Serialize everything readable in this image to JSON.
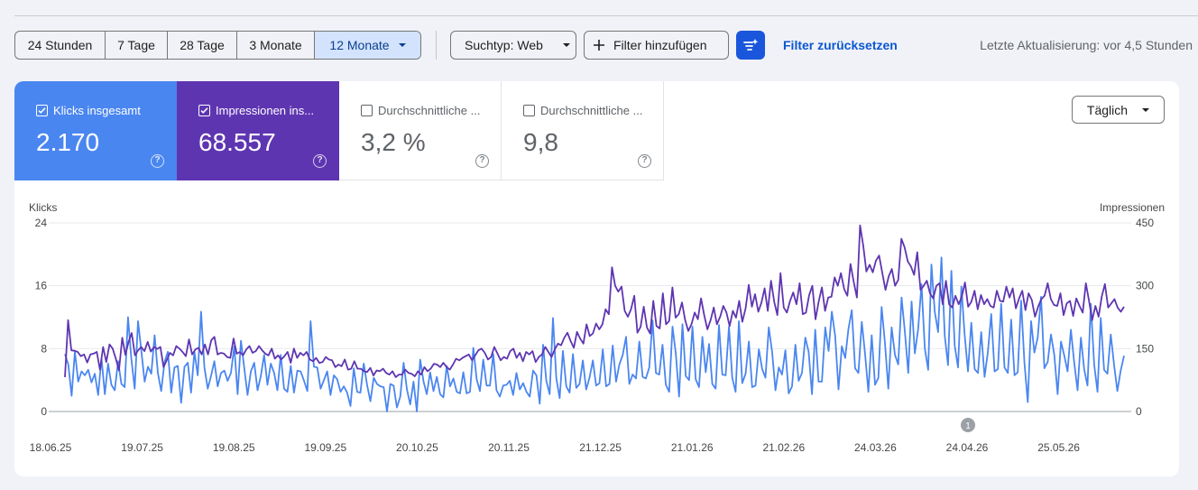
{
  "toolbar": {
    "ranges": [
      {
        "label": "24 Stunden",
        "active": false
      },
      {
        "label": "7 Tage",
        "active": false
      },
      {
        "label": "28 Tage",
        "active": false
      },
      {
        "label": "3 Monate",
        "active": false
      },
      {
        "label": "12 Monate",
        "active": true
      }
    ],
    "search_type": "Suchtyp: Web",
    "add_filter": "Filter hinzufügen",
    "reset_filter": "Filter zurücksetzen",
    "last_update": "Letzte Aktualisierung: vor 4,5 Stunden"
  },
  "metrics": [
    {
      "label": "Klicks insgesamt",
      "value": "2.170",
      "checked": true,
      "color": "#4a86f0"
    },
    {
      "label": "Impressionen ins...",
      "value": "68.557",
      "checked": true,
      "color": "#5e35b1"
    },
    {
      "label": "Durchschnittliche ...",
      "value": "3,2 %",
      "checked": false
    },
    {
      "label": "Durchschnittliche ...",
      "value": "9,8",
      "checked": false
    }
  ],
  "granularity": "Täglich",
  "chart_data": {
    "type": "line",
    "left_axis_label": "Klicks",
    "right_axis_label": "Impressionen",
    "left_ticks": [
      "24",
      "16",
      "8",
      "0"
    ],
    "right_ticks": [
      "450",
      "300",
      "150",
      "0"
    ],
    "left_ylim": [
      0,
      24
    ],
    "right_ylim": [
      0,
      450
    ],
    "x_ticks": [
      "18.06.25",
      "19.07.25",
      "19.08.25",
      "19.09.25",
      "20.10.25",
      "20.11.25",
      "21.12.25",
      "21.01.26",
      "21.02.26",
      "24.03.26",
      "24.04.26",
      "25.05.26"
    ],
    "annotation": "1",
    "series": [
      {
        "name": "Klicks",
        "axis": "left",
        "color": "#4a86f0",
        "values": [
          7.3,
          6,
          2,
          7.6,
          3.8,
          5.1,
          4.6,
          5.3,
          3.7,
          4.8,
          2.1,
          6.8,
          2.2,
          6.1,
          3.4,
          2.7,
          6.4,
          3.5,
          3.1,
          12,
          6.7,
          2.9,
          11.5,
          7.8,
          3.8,
          5.7,
          4.8,
          9.7,
          4.9,
          2.6,
          6.3,
          7.6,
          2.4,
          5.6,
          5.8,
          1.1,
          5.7,
          6.2,
          2.4,
          7.6,
          4.6,
          12.7,
          5.6,
          2.9,
          4.5,
          6.4,
          3.2,
          4.9,
          5.2,
          3.9,
          4.9,
          8.3,
          2.2,
          9,
          5.6,
          2.1,
          5.1,
          6.2,
          2.7,
          4.5,
          7.2,
          3.4,
          6.1,
          4.9,
          2.7,
          7.2,
          2.9,
          2.5,
          5.8,
          2.4,
          5.2,
          5.1,
          3.9,
          2.6,
          11.5,
          5.7,
          5.6,
          2.9,
          4,
          5.1,
          2.1,
          4.6,
          4.1,
          2.5,
          3.2,
          2.4,
          0.7,
          5.5,
          2.5,
          2.4,
          6.1,
          3.4,
          1.3,
          4.3,
          3.5,
          3.2,
          3.1,
          0,
          3.5,
          3.3,
          0.5,
          1.9,
          6.2,
          2.8,
          0.9,
          3.8,
          0,
          6.6,
          3.8,
          2.2,
          5,
          2.6,
          4.4,
          2.2,
          1.8,
          5.8,
          3.2,
          4.2,
          2.5,
          2.3,
          5,
          2.3,
          2.5,
          8.1,
          4.1,
          2.6,
          6.6,
          3.3,
          3.3,
          7.3,
          2.7,
          1.9,
          3.3,
          3.4,
          3.9,
          2.1,
          4.9,
          2.8,
          3.6,
          2.5,
          1.9,
          5.2,
          4.6,
          1,
          8.5,
          3.9,
          2.2,
          11.9,
          4.2,
          1.7,
          7.7,
          3.2,
          2.4,
          7.3,
          3,
          3.5,
          6.5,
          2.8,
          4.3,
          6.5,
          3.3,
          3.6,
          7.9,
          3.2,
          3.5,
          8.4,
          3.8,
          6,
          7.2,
          9.5,
          3.5,
          4.7,
          4.2,
          8.9,
          4.4,
          4.2,
          5.6,
          11.6,
          4.9,
          4.7,
          8.5,
          3.4,
          2.5,
          10.8,
          7.3,
          1.9,
          11.1,
          4.5,
          4,
          10.8,
          4.1,
          3.1,
          9.5,
          5,
          8.6,
          3.5,
          2.9,
          11,
          4.7,
          4.6,
          10.8,
          4.3,
          2.5,
          11.5,
          3.6,
          4.8,
          8.9,
          3.1,
          3.3,
          7.9,
          5.4,
          4.3,
          10.7,
          7.6,
          2.7,
          5.6,
          4.7,
          7.8,
          2.3,
          3.2,
          8.5,
          3.9,
          4.9,
          9.4,
          7.6,
          2.2,
          10.4,
          3.8,
          3.8,
          10.7,
          7.7,
          12.7,
          9.6,
          2.8,
          8.3,
          6.8,
          10.5,
          12.9,
          5.5,
          4.9,
          11.4,
          7.4,
          2.5,
          9.7,
          3.4,
          4.3,
          13.3,
          8.7,
          2.9,
          10.7,
          7.2,
          6,
          14.5,
          10.1,
          4.9,
          14,
          7.4,
          10.5,
          16.2,
          8,
          5.3,
          18.7,
          12.7,
          10.1,
          19.6,
          9.6,
          5.9,
          17.9,
          8.4,
          5.6,
          15.9,
          9.8,
          5.1,
          11.3,
          5.4,
          4.9,
          10.1,
          4.4,
          7.6,
          12.4,
          5.1,
          5.4,
          13.7,
          5.6,
          4.9,
          11.7,
          4.6,
          5,
          14.1,
          6.2,
          1.2,
          11.5,
          7.5,
          9.4,
          14.6,
          5.5,
          6.3,
          9.8,
          7.2,
          2.2,
          8.9,
          7.1,
          5.1,
          10.4,
          6.2,
          2.7,
          9.4,
          5.4,
          3.3,
          13.7,
          6,
          2.5,
          11.9,
          5.3,
          4.8,
          9.8,
          5.9,
          2.6,
          5.2,
          7.1
        ]
      },
      {
        "name": "Impressionen",
        "axis": "right",
        "color": "#5e35b1",
        "values": [
          82,
          218,
          146,
          145,
          142,
          132,
          136,
          117,
          136,
          138,
          142,
          100,
          154,
          118,
          160,
          150,
          126,
          98,
          176,
          135,
          166,
          187,
          134,
          146,
          154,
          144,
          166,
          143,
          154,
          149,
          154,
          106,
          122,
          140,
          134,
          156,
          150,
          142,
          132,
          172,
          136,
          148,
          152,
          136,
          160,
          136,
          170,
          178,
          136,
          140,
          138,
          130,
          128,
          174,
          138,
          142,
          134,
          148,
          156,
          140,
          144,
          156,
          146,
          138,
          134,
          150,
          126,
          134,
          124,
          132,
          142,
          116,
          150,
          128,
          140,
          134,
          142,
          124,
          120,
          128,
          116,
          118,
          130,
          124,
          122,
          106,
          112,
          108,
          124,
          100,
          102,
          120,
          102,
          102,
          96,
          94,
          104,
          86,
          98,
          96,
          102,
          92,
          88,
          96,
          82,
          88,
          88,
          100,
          92,
          90,
          84,
          96,
          88,
          106,
          96,
          102,
          114,
          112,
          106,
          116,
          106,
          100,
          112,
          126,
          122,
          128,
          132,
          136,
          122,
          134,
          146,
          150,
          140,
          124,
          130,
          154,
          138,
          122,
          130,
          126,
          144,
          150,
          128,
          140,
          120,
          142,
          136,
          144,
          118,
          130,
          136,
          154,
          142,
          130,
          148,
          162,
          158,
          176,
          188,
          168,
          152,
          190,
          174,
          162,
          208,
          180,
          186,
          210,
          196,
          208,
          244,
          232,
          344,
          300,
          286,
          298,
          240,
          226,
          244,
          276,
          188,
          202,
          250,
          200,
          186,
          264,
          204,
          198,
          282,
          208,
          216,
          296,
          224,
          232,
          260,
          218,
          192,
          208,
          236,
          220,
          270,
          230,
          196,
          218,
          248,
          208,
          226,
          252,
          236,
          204,
          240,
          224,
          264,
          214,
          246,
          302,
          250,
          280,
          238,
          260,
          294,
          240,
          312,
          262,
          230,
          330,
          248,
          236,
          264,
          284,
          256,
          306,
          232,
          236,
          278,
          300,
          220,
          262,
          296,
          240,
          272,
          274,
          320,
          300,
          330,
          292,
          276,
          352,
          310,
          272,
          444,
          396,
          334,
          350,
          332,
          360,
          372,
          330,
          290,
          322,
          340,
          300,
          314,
          412,
          392,
          358,
          346,
          326,
          380,
          290,
          300,
          312,
          282,
          270,
          300,
          306,
          256,
          312,
          256,
          248,
          276,
          256,
          274,
          308,
          250,
          262,
          288,
          244,
          278,
          256,
          268,
          252,
          248,
          288,
          264,
          262,
          298,
          272,
          294,
          246,
          270,
          288,
          242,
          282,
          266,
          226,
          250,
          268,
          276,
          306,
          268,
          254,
          252,
          282,
          230,
          258,
          264,
          228,
          270,
          252,
          236,
          306,
          264,
          218,
          252,
          226,
          274,
          304,
          248,
          258,
          268,
          248,
          238,
          250
        ]
      }
    ]
  }
}
